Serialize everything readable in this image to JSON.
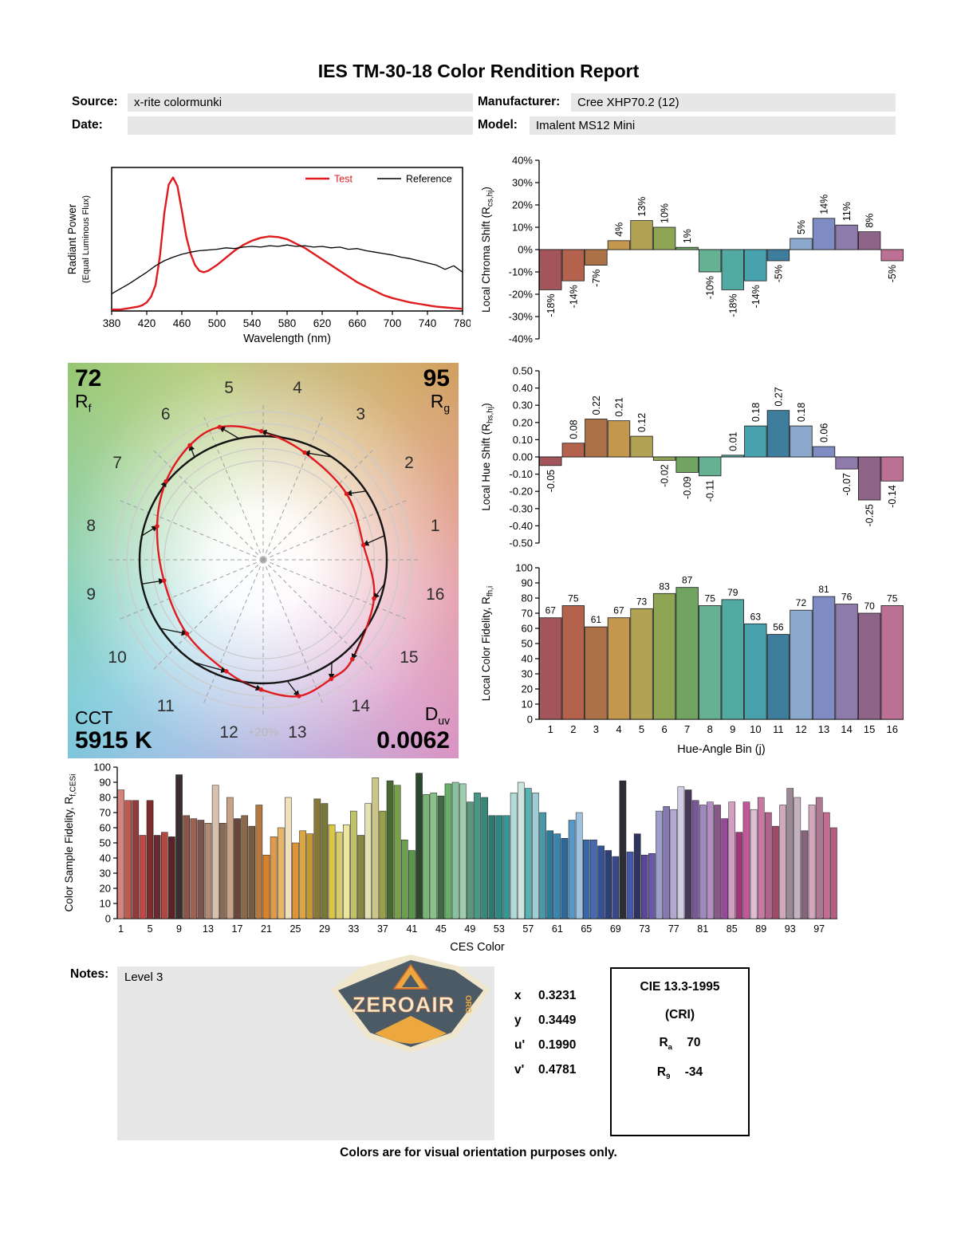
{
  "title": "IES TM-30-18 Color Rendition Report",
  "header": {
    "source_label": "Source:",
    "source_value": "x-rite colormunki",
    "manufacturer_label": "Manufacturer:",
    "manufacturer_value": "Cree XHP70.2 (12)",
    "date_label": "Date:",
    "date_value": "",
    "model_label": "Model:",
    "model_value": "Imalent MS12 Mini"
  },
  "hue_bin_colors": [
    "#a4555c",
    "#b4624e",
    "#ad7147",
    "#c3974e",
    "#b2a254",
    "#8ea653",
    "#71a361",
    "#66b093",
    "#52aaa2",
    "#48a2ad",
    "#3f7d9d",
    "#8ba9cd",
    "#7f8cc3",
    "#8e7bac",
    "#8f6489",
    "#bc7094"
  ],
  "chart_data": [
    {
      "id": "spd",
      "type": "line",
      "xlabel": "Wavelength (nm)",
      "ylabel_lines": [
        "Radiant Power",
        "(Equal Luminous Flux)"
      ],
      "xlim": [
        380,
        780
      ],
      "xticks": [
        380,
        420,
        460,
        500,
        540,
        580,
        620,
        660,
        700,
        740,
        780
      ],
      "series": [
        {
          "name": "Test",
          "color": "#e01b1f",
          "width": 2.4,
          "x": [
            380,
            390,
            400,
            410,
            415,
            420,
            425,
            430,
            435,
            440,
            445,
            450,
            455,
            460,
            465,
            470,
            475,
            480,
            485,
            490,
            500,
            510,
            520,
            530,
            540,
            550,
            560,
            570,
            580,
            590,
            600,
            610,
            620,
            630,
            640,
            650,
            660,
            670,
            680,
            690,
            700,
            710,
            720,
            730,
            740,
            750,
            760,
            770,
            780
          ],
          "y": [
            0.01,
            0.01,
            0.02,
            0.03,
            0.04,
            0.06,
            0.1,
            0.18,
            0.38,
            0.68,
            0.88,
            0.93,
            0.87,
            0.7,
            0.52,
            0.4,
            0.32,
            0.28,
            0.27,
            0.28,
            0.32,
            0.37,
            0.42,
            0.46,
            0.49,
            0.51,
            0.52,
            0.515,
            0.5,
            0.47,
            0.44,
            0.4,
            0.36,
            0.32,
            0.28,
            0.24,
            0.2,
            0.17,
            0.14,
            0.11,
            0.09,
            0.075,
            0.06,
            0.05,
            0.04,
            0.03,
            0.025,
            0.02,
            0.015
          ]
        },
        {
          "name": "Reference",
          "color": "#000000",
          "width": 1.3,
          "x": [
            380,
            390,
            400,
            410,
            420,
            430,
            440,
            450,
            460,
            470,
            480,
            490,
            500,
            510,
            520,
            530,
            540,
            550,
            560,
            570,
            580,
            590,
            600,
            610,
            620,
            630,
            640,
            650,
            660,
            670,
            680,
            690,
            700,
            710,
            720,
            730,
            740,
            750,
            760,
            770,
            780
          ],
          "y": [
            0.12,
            0.155,
            0.19,
            0.23,
            0.27,
            0.315,
            0.35,
            0.375,
            0.395,
            0.41,
            0.42,
            0.425,
            0.43,
            0.44,
            0.435,
            0.445,
            0.45,
            0.445,
            0.455,
            0.45,
            0.46,
            0.45,
            0.455,
            0.445,
            0.45,
            0.44,
            0.445,
            0.43,
            0.435,
            0.42,
            0.41,
            0.4,
            0.39,
            0.375,
            0.365,
            0.35,
            0.335,
            0.32,
            0.29,
            0.315,
            0.27
          ]
        }
      ]
    },
    {
      "id": "chroma",
      "type": "bar",
      "ylabel_pre": "Local Chroma Shift (R",
      "ylabel_sub": "cs,hj",
      "ylabel_post": ")",
      "ylim": [
        -40,
        40
      ],
      "yticks": [
        40,
        30,
        20,
        10,
        0,
        -10,
        -20,
        -30,
        -40
      ],
      "ytick_labels": [
        "40%",
        "30%",
        "20%",
        "10%",
        "0%",
        "-10%",
        "-20%",
        "-30%",
        "-40%"
      ],
      "categories": [
        1,
        2,
        3,
        4,
        5,
        6,
        7,
        8,
        9,
        10,
        11,
        12,
        13,
        14,
        15,
        16
      ],
      "values": [
        -18,
        -14,
        -7,
        4,
        13,
        10,
        1,
        -10,
        -18,
        -14,
        -5,
        5,
        14,
        11,
        8,
        -5
      ],
      "bar_labels": [
        "-18%",
        "-14%",
        "-7%",
        "4%",
        "13%",
        "10%",
        "1%",
        "-10%",
        "-18%",
        "-14%",
        "-5%",
        "5%",
        "14%",
        "11%",
        "8%",
        "-5%"
      ]
    },
    {
      "id": "hue",
      "type": "bar",
      "ylabel_pre": "Local Hue Shift (R",
      "ylabel_sub": "hs,hj",
      "ylabel_post": ")",
      "ylim": [
        -0.5,
        0.5
      ],
      "yticks": [
        0.5,
        0.4,
        0.3,
        0.2,
        0.1,
        0,
        -0.1,
        -0.2,
        -0.3,
        -0.4,
        -0.5
      ],
      "ytick_labels": [
        "0.50",
        "0.40",
        "0.30",
        "0.20",
        "0.10",
        "0.00",
        "-0.10",
        "-0.20",
        "-0.30",
        "-0.40",
        "-0.50"
      ],
      "categories": [
        1,
        2,
        3,
        4,
        5,
        6,
        7,
        8,
        9,
        10,
        11,
        12,
        13,
        14,
        15,
        16
      ],
      "values": [
        -0.05,
        0.08,
        0.22,
        0.21,
        0.12,
        -0.02,
        -0.09,
        -0.11,
        0.01,
        0.18,
        0.27,
        0.18,
        0.06,
        -0.07,
        -0.25,
        -0.14
      ],
      "bar_labels": [
        "-0.05",
        "0.08",
        "0.22",
        "0.21",
        "0.12",
        "-0.02",
        "-0.09",
        "-0.11",
        "0.01",
        "0.18",
        "0.27",
        "0.18",
        "0.06",
        "-0.07",
        "-0.25",
        "-0.14"
      ]
    },
    {
      "id": "local_fidelity",
      "type": "bar",
      "ylabel_pre": "Local Color Fidelity, R",
      "ylabel_sub": "fh,i",
      "ylabel_post": "",
      "xlabel": "Hue-Angle Bin (j)",
      "ylim": [
        0,
        100
      ],
      "yticks": [
        100,
        90,
        80,
        70,
        60,
        50,
        40,
        30,
        20,
        10,
        0
      ],
      "ytick_labels": [
        "100",
        "90",
        "80",
        "70",
        "60",
        "50",
        "40",
        "30",
        "20",
        "10",
        "0"
      ],
      "categories": [
        1,
        2,
        3,
        4,
        5,
        6,
        7,
        8,
        9,
        10,
        11,
        12,
        13,
        14,
        15,
        16
      ],
      "values": [
        67,
        75,
        61,
        67,
        73,
        83,
        87,
        75,
        79,
        63,
        56,
        72,
        81,
        76,
        70,
        75
      ],
      "bar_labels": [
        "67",
        "75",
        "61",
        "67",
        "73",
        "83",
        "87",
        "75",
        "79",
        "63",
        "56",
        "72",
        "81",
        "76",
        "70",
        "75"
      ]
    },
    {
      "id": "ces",
      "type": "bar",
      "ylabel_pre": "Color Sample Fidelity, R",
      "ylabel_sub": "f,CESi",
      "ylabel_post": "",
      "xlabel": "CES Color",
      "ylim": [
        0,
        100
      ],
      "yticks": [
        100,
        90,
        80,
        70,
        60,
        50,
        40,
        30,
        20,
        10,
        0
      ],
      "ytick_labels": [
        "100",
        "90",
        "80",
        "70",
        "60",
        "50",
        "40",
        "30",
        "20",
        "10",
        "0"
      ],
      "xticks": [
        1,
        5,
        9,
        13,
        17,
        21,
        25,
        29,
        33,
        37,
        41,
        45,
        49,
        53,
        57,
        61,
        65,
        69,
        73,
        77,
        81,
        85,
        89,
        93,
        97
      ],
      "values": [
        85,
        78,
        78,
        55,
        78,
        55,
        57,
        54,
        95,
        68,
        66,
        65,
        63,
        88,
        63,
        80,
        66,
        68,
        61,
        75,
        42,
        54,
        60,
        80,
        50,
        58,
        56,
        79,
        76,
        62,
        57,
        62,
        71,
        55,
        76,
        93,
        71,
        91,
        88,
        52,
        45,
        96,
        82,
        83,
        81,
        89,
        90,
        89,
        77,
        83,
        80,
        68,
        68,
        68,
        83,
        90,
        86,
        83,
        70,
        58,
        56,
        53,
        65,
        70,
        52,
        52,
        48,
        45,
        41,
        91,
        44,
        56,
        42,
        43,
        71,
        74,
        72,
        87,
        85,
        78,
        75,
        77,
        75,
        66,
        77,
        57,
        77,
        72,
        80,
        70,
        61,
        75,
        86,
        80,
        58,
        75,
        80,
        70,
        60
      ],
      "colors": [
        "#d4847c",
        "#c05a50",
        "#8e3c3c",
        "#c24848",
        "#7c2e2e",
        "#6a2a32",
        "#b04840",
        "#582226",
        "#3a2e2e",
        "#8a5648",
        "#a06050",
        "#7a564c",
        "#b08a74",
        "#d8c0ae",
        "#8a6a56",
        "#c8a286",
        "#684738",
        "#8a6848",
        "#785a3c",
        "#b47840",
        "#d8822c",
        "#df9a4b",
        "#e8b66a",
        "#f0e0bc",
        "#df9238",
        "#d8a642",
        "#c49832",
        "#887838",
        "#787838",
        "#dcc648",
        "#d8cc68",
        "#eee49e",
        "#c0c268",
        "#888844",
        "#e4e0b2",
        "#ccc686",
        "#98a048",
        "#486832",
        "#78a048",
        "#68a050",
        "#589848",
        "#2e482e",
        "#78b678",
        "#88c288",
        "#3e6a48",
        "#68ae68",
        "#88c29e",
        "#9ecead",
        "#589878",
        "#489888",
        "#388878",
        "#2e7870",
        "#2e8884",
        "#389894",
        "#b2dad6",
        "#cee4e0",
        "#58b2b2",
        "#9ecdd6",
        "#4898a8",
        "#2e7898",
        "#3884b2",
        "#2e6898",
        "#5898c8",
        "#9ec2de",
        "#3868a8",
        "#4868b2",
        "#345298",
        "#2e3e78",
        "#384888",
        "#2c2c34",
        "#4858a8",
        "#2e345e",
        "#584898",
        "#6858a8",
        "#9e9ecd",
        "#8878b2",
        "#b2a8d2",
        "#d2cde4",
        "#483858",
        "#785898",
        "#9e88be",
        "#b28ec2",
        "#885888",
        "#984898",
        "#d29ec2",
        "#9e3878",
        "#c25898",
        "#debed2",
        "#c878a4",
        "#b2628c",
        "#a04a68",
        "#d0aabb",
        "#9a8a96",
        "#c4b2be",
        "#87647a",
        "#d2a8bc",
        "#b07890",
        "#c46d92",
        "#b25f80"
      ]
    }
  ],
  "cvg": {
    "rf_value": "72",
    "rf_sym": "R",
    "rf_sub": "f",
    "rg_value": "95",
    "rg_sym": "R",
    "rg_sub": "g",
    "cct_label": "CCT",
    "cct_value": "5915 K",
    "duv_sym": "D",
    "duv_sub": "uv",
    "duv_value": "0.0062",
    "ring_label": "+20%",
    "bins": [
      "1",
      "2",
      "3",
      "4",
      "5",
      "6",
      "7",
      "8",
      "9",
      "10",
      "11",
      "12",
      "13",
      "14",
      "15",
      "16"
    ]
  },
  "notes": {
    "label": "Notes:",
    "value": "Level 3"
  },
  "logo": {
    "main": "ZEROAIR",
    "org": "ORG"
  },
  "chromaticity": {
    "rows": [
      {
        "label": "x",
        "value": "0.3231"
      },
      {
        "label": "y",
        "value": "0.3449"
      },
      {
        "label": "u'",
        "value": "0.1990"
      },
      {
        "label": "v'",
        "value": "0.4781"
      }
    ]
  },
  "cri": {
    "title": "CIE 13.3-1995",
    "subtitle": "(CRI)",
    "rows": [
      {
        "sym": "R",
        "sub": "a",
        "value": "70"
      },
      {
        "sym": "R",
        "sub": "9",
        "value": "-34"
      }
    ]
  },
  "footer": "Colors are for visual orientation purposes only."
}
